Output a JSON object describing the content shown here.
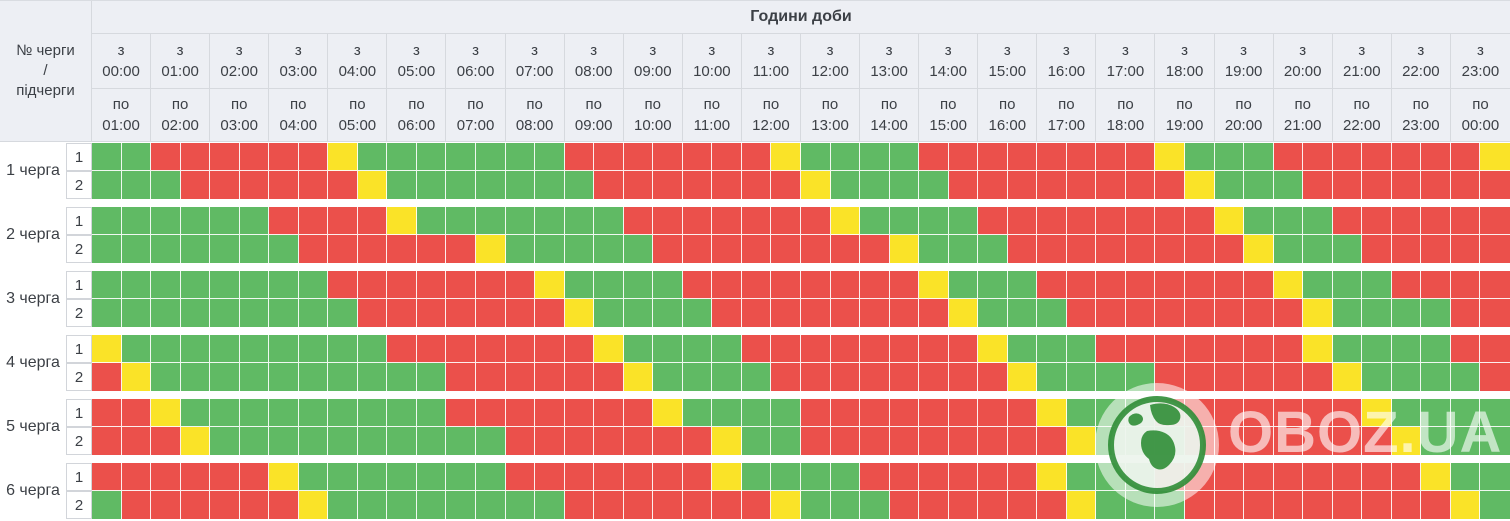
{
  "table": {
    "corner_lines": [
      "№ черги",
      "/",
      "підчерги"
    ],
    "title": "Години доби",
    "from_prefix": "з",
    "to_prefix": "по",
    "hours": [
      {
        "from": "00:00",
        "to": "01:00"
      },
      {
        "from": "01:00",
        "to": "02:00"
      },
      {
        "from": "02:00",
        "to": "03:00"
      },
      {
        "from": "03:00",
        "to": "04:00"
      },
      {
        "from": "04:00",
        "to": "05:00"
      },
      {
        "from": "05:00",
        "to": "06:00"
      },
      {
        "from": "06:00",
        "to": "07:00"
      },
      {
        "from": "07:00",
        "to": "08:00"
      },
      {
        "from": "08:00",
        "to": "09:00"
      },
      {
        "from": "09:00",
        "to": "10:00"
      },
      {
        "from": "10:00",
        "to": "11:00"
      },
      {
        "from": "11:00",
        "to": "12:00"
      },
      {
        "from": "12:00",
        "to": "13:00"
      },
      {
        "from": "13:00",
        "to": "14:00"
      },
      {
        "from": "14:00",
        "to": "15:00"
      },
      {
        "from": "15:00",
        "to": "16:00"
      },
      {
        "from": "16:00",
        "to": "17:00"
      },
      {
        "from": "17:00",
        "to": "18:00"
      },
      {
        "from": "18:00",
        "to": "19:00"
      },
      {
        "from": "19:00",
        "to": "20:00"
      },
      {
        "from": "20:00",
        "to": "21:00"
      },
      {
        "from": "21:00",
        "to": "22:00"
      },
      {
        "from": "22:00",
        "to": "23:00"
      },
      {
        "from": "23:00",
        "to": "00:00"
      }
    ],
    "cell_states": {
      "G": "power-on",
      "R": "power-off",
      "Y": "possible-off"
    },
    "queues": [
      {
        "label": "1 черга",
        "subqueues": [
          {
            "num": "1",
            "cells": "GGRRRRRRYGGGGGGGRRRRRRRYGGGGRRRRRRRRYGGGRRRRRRRY"
          },
          {
            "num": "2",
            "cells": "GGGRRRRRRYGGGGGGGRRRRRRRYGGGGRRRRRRRRYGGGRRRRRRR"
          }
        ]
      },
      {
        "label": "2 черга",
        "subqueues": [
          {
            "num": "1",
            "cells": "GGGGGGRRRRYGGGGGGGRRRRRRRYGGGGRRRRRRRRYGGGRRRRRR"
          },
          {
            "num": "2",
            "cells": "GGGGGGGRRRRRRYGGGGGRRRRRRRRYGGGRRRRRRRRYGGGRRRRR"
          }
        ]
      },
      {
        "label": "3 черга",
        "subqueues": [
          {
            "num": "1",
            "cells": "GGGGGGGGRRRRRRRYGGGGRRRRRRRRYGGGRRRRRRRRYGGGRRRR"
          },
          {
            "num": "2",
            "cells": "GGGGGGGGGRRRRRRRYGGGGRRRRRRRRYGGGRRRRRRRRYGGGGRR"
          }
        ]
      },
      {
        "label": "4 черга",
        "subqueues": [
          {
            "num": "1",
            "cells": "YGGGGGGGGGRRRRRRRYGGGGRRRRRRRRYGGGRRRRRRRYGGGGRR"
          },
          {
            "num": "2",
            "cells": "RYGGGGGGGGGGRRRRRRYGGGGRRRRRRRRYGGGGRRRRRRYGGGGR"
          }
        ]
      },
      {
        "label": "5 черга",
        "subqueues": [
          {
            "num": "1",
            "cells": "RRYGGGGGGGGGRRRRRRRYGGGGRRRRRRRRYGGGRRRRRRRYGGGG"
          },
          {
            "num": "2",
            "cells": "RRRYGGGGGGGGGGRRRRRRRYGGRRRRRRRRRYGGGRRRRRRRYGGG"
          }
        ]
      },
      {
        "label": "6 черга",
        "subqueues": [
          {
            "num": "1",
            "cells": "RRRRRRYGGGGGGGRRRRRRRYGGGGRRRRRRYGGGRRRRRRRRRYGG"
          },
          {
            "num": "2",
            "cells": "GRRRRRRYGGGGGGGGRRRRRRRYGGGRRRRRRYGGGRRRRRRRRRYG"
          }
        ]
      }
    ]
  },
  "legend_colors": {
    "G": "#60ba64",
    "R": "#eb504b",
    "Y": "#fae328"
  },
  "ui_colors": {
    "header_bg": "#edeff4",
    "header_border": "#d6d9de",
    "text": "#3c4046"
  },
  "watermark": {
    "text": "OBOZ.UA"
  }
}
